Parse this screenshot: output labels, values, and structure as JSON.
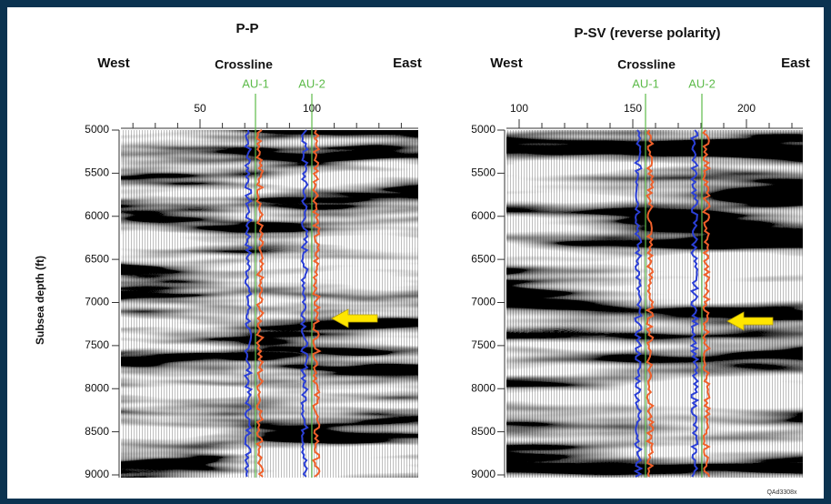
{
  "figure_id": "QAd3308x",
  "y_axis_label": "Subsea depth (ft)",
  "panels": [
    {
      "title": "P-P",
      "west": "West",
      "east": "East",
      "axis_label": "Crossline",
      "wells": [
        "AU-1",
        "AU-2"
      ],
      "xticks": [
        50,
        100
      ],
      "yticks": [
        5000,
        5500,
        6000,
        6500,
        7000,
        7500,
        8000,
        8500,
        9000
      ]
    },
    {
      "title": "P-SV (reverse polarity)",
      "west": "West",
      "east": "East",
      "axis_label": "Crossline",
      "wells": [
        "AU-1",
        "AU-2"
      ],
      "xticks": [
        100,
        150,
        200
      ],
      "yticks": [
        5000,
        5500,
        6000,
        6500,
        7000,
        7500,
        8000,
        8500,
        9000
      ]
    }
  ]
}
